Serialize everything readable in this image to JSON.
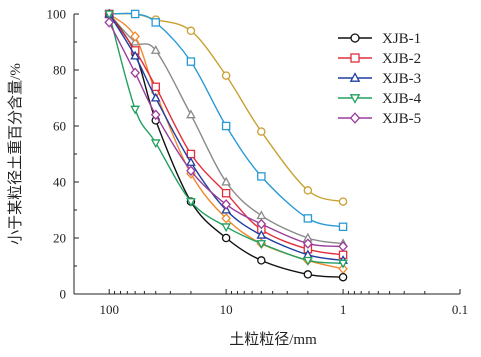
{
  "chart_data": {
    "type": "line",
    "xlabel": "土粒粒径/mm",
    "ylabel": "小于某粒径土重百分含量/%",
    "x_scale": "log",
    "x_reversed": true,
    "xlim": [
      200,
      0.1
    ],
    "ylim": [
      0,
      100
    ],
    "x_ticks": [
      100,
      10,
      1,
      0.1
    ],
    "x_tick_labels": [
      "100",
      "10",
      "1",
      "0.1"
    ],
    "y_ticks": [
      0,
      20,
      40,
      60,
      80,
      100
    ],
    "y_tick_labels": [
      "0",
      "20",
      "40",
      "60",
      "80",
      "100"
    ],
    "grid": false,
    "legend_position": "top-right",
    "series": [
      {
        "name": "XJB-1",
        "color": "#111111",
        "marker": "circle",
        "x": [
          100,
          60,
          40,
          20,
          10,
          5,
          2,
          1
        ],
        "y": [
          100,
          86,
          62,
          33,
          20,
          12,
          7,
          6
        ]
      },
      {
        "name": "XJB-2",
        "color": "#e0303b",
        "marker": "square",
        "x": [
          100,
          60,
          40,
          20,
          10,
          5,
          2,
          1
        ],
        "y": [
          100,
          87,
          74,
          50,
          36,
          23,
          16,
          14
        ]
      },
      {
        "name": "XJB-3",
        "color": "#1f3ea0",
        "marker": "triangle-up",
        "x": [
          100,
          60,
          40,
          20,
          10,
          5,
          2,
          1
        ],
        "y": [
          100,
          85,
          70,
          47,
          30,
          21,
          14,
          12
        ]
      },
      {
        "name": "XJB-4",
        "color": "#22a060",
        "marker": "triangle-down",
        "x": [
          100,
          60,
          40,
          20,
          10,
          5,
          2,
          1
        ],
        "y": [
          100,
          66,
          54,
          33,
          24,
          18,
          12,
          11
        ]
      },
      {
        "name": "XJB-5",
        "color": "#9b3d9b",
        "marker": "diamond",
        "x": [
          100,
          60,
          40,
          20,
          10,
          5,
          2,
          1
        ],
        "y": [
          97,
          79,
          64,
          44,
          32,
          25,
          18,
          17
        ]
      },
      {
        "name": "",
        "color": "#c9a032",
        "marker": "circle",
        "x": [
          100,
          60,
          40,
          20,
          10,
          5,
          2,
          1
        ],
        "y": [
          100,
          100,
          98,
          94,
          78,
          58,
          37,
          33
        ]
      },
      {
        "name": "",
        "color": "#2a9ad6",
        "marker": "square",
        "x": [
          100,
          60,
          40,
          20,
          10,
          5,
          2,
          1
        ],
        "y": [
          100,
          100,
          97,
          83,
          60,
          42,
          27,
          24
        ]
      },
      {
        "name": "",
        "color": "#8a8a8a",
        "marker": "triangle-up",
        "x": [
          100,
          60,
          40,
          20,
          10,
          5,
          2,
          1
        ],
        "y": [
          100,
          90,
          87,
          64,
          40,
          28,
          20,
          18
        ]
      },
      {
        "name": "",
        "color": "#f08a30",
        "marker": "diamond",
        "x": [
          100,
          60,
          40,
          20,
          10,
          5,
          2,
          1
        ],
        "y": [
          100,
          92,
          72,
          43,
          27,
          18,
          12,
          9
        ]
      }
    ]
  }
}
